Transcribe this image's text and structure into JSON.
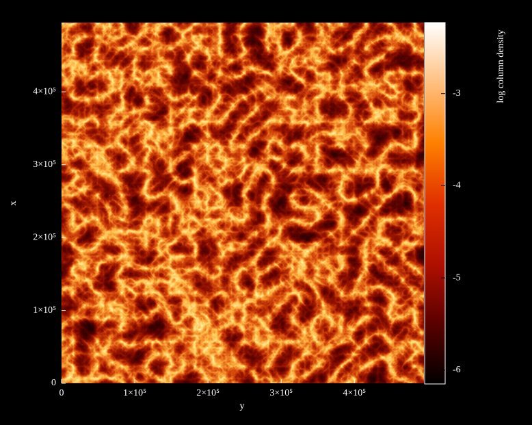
{
  "chart_data": {
    "type": "heatmap",
    "xlabel": "y",
    "ylabel": "x",
    "xlim": [
      0,
      495000
    ],
    "ylim": [
      0,
      495000
    ],
    "xticks": [
      0,
      {
        "value": 100000,
        "label": "1×10⁵"
      },
      {
        "value": 200000,
        "label": "2×10⁵"
      },
      {
        "value": 300000,
        "label": "3×10⁵"
      },
      {
        "value": 400000,
        "label": "4×10⁵"
      }
    ],
    "yticks": [
      0,
      {
        "value": 100000,
        "label": "1×10⁵"
      },
      {
        "value": 200000,
        "label": "2×10⁵"
      },
      {
        "value": 300000,
        "label": "3×10⁵"
      },
      {
        "value": 400000,
        "label": "4×10⁵"
      }
    ],
    "colorbar": {
      "label": "log column density",
      "lim": [
        -6.15,
        -2.23
      ],
      "ticks": [
        -3,
        -4,
        -5,
        -6
      ],
      "colors": [
        "#000000",
        "#5a0000",
        "#b01000",
        "#e03000",
        "#ff8000",
        "#ffc080",
        "#ffffff"
      ]
    }
  }
}
